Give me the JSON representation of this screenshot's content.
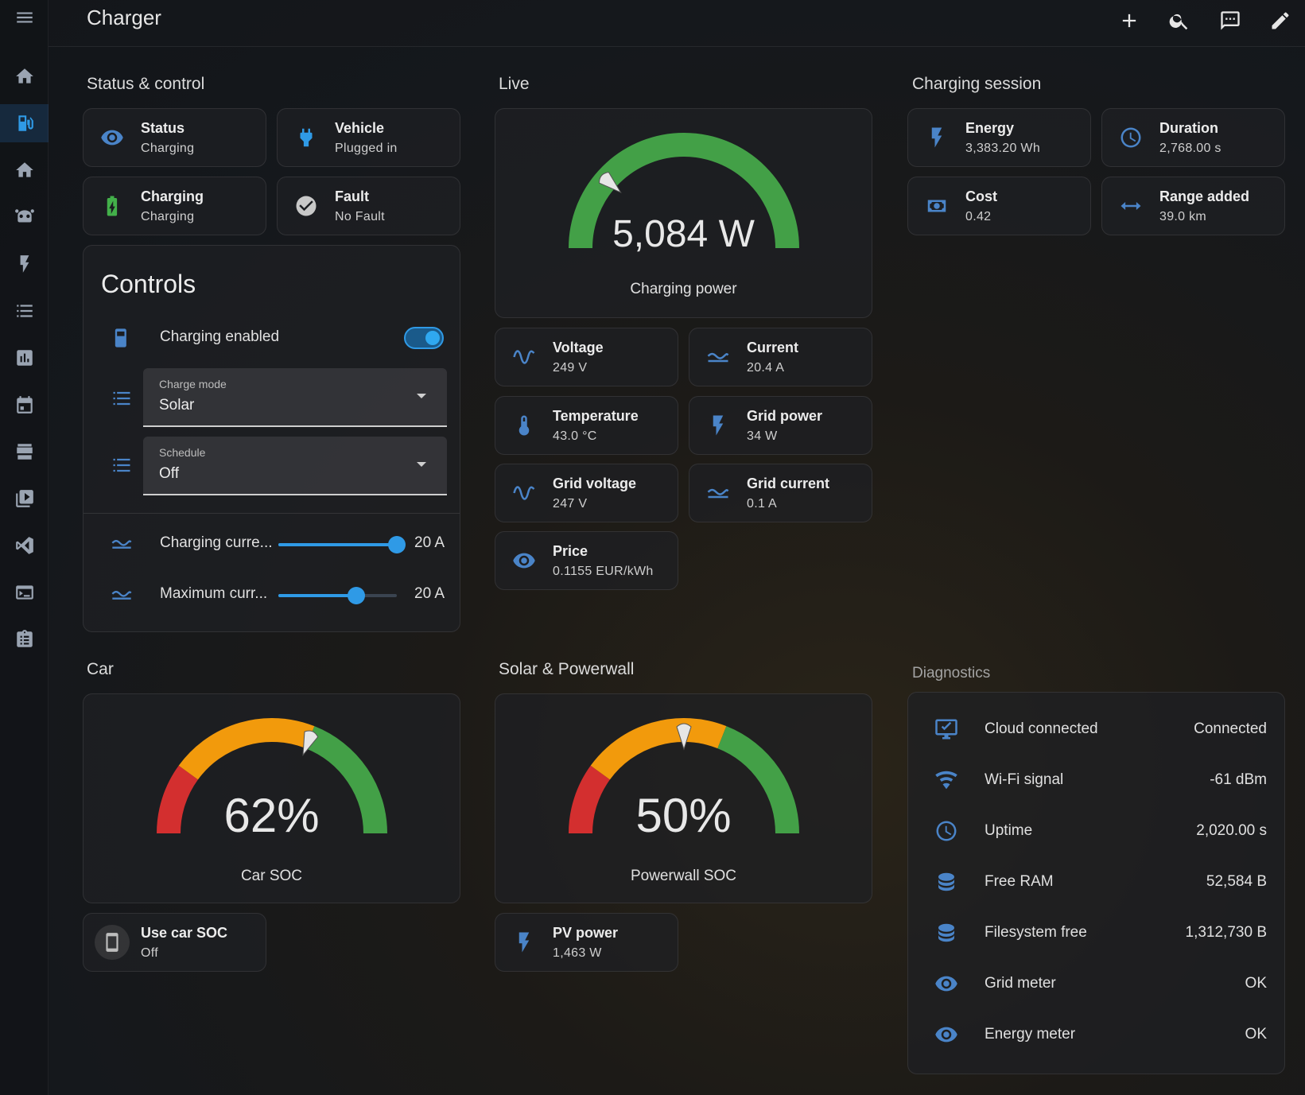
{
  "header": {
    "title": "Charger"
  },
  "sections": {
    "status_control": "Status & control",
    "live": "Live",
    "charging_session": "Charging session",
    "car": "Car",
    "solar_powerwall": "Solar & Powerwall",
    "diagnostics": "Diagnostics"
  },
  "status_tiles": [
    {
      "name": "Status",
      "state": "Charging",
      "icon": "eye-icon"
    },
    {
      "name": "Vehicle",
      "state": "Plugged in",
      "icon": "plug-icon"
    },
    {
      "name": "Charging",
      "state": "Charging",
      "icon": "battery-charging-icon"
    },
    {
      "name": "Fault",
      "state": "No Fault",
      "icon": "check-circle-icon"
    }
  ],
  "controls": {
    "title": "Controls",
    "charging_enabled": {
      "label": "Charging enabled",
      "on": true
    },
    "charge_mode": {
      "label": "Charge mode",
      "value": "Solar"
    },
    "schedule": {
      "label": "Schedule",
      "value": "Off"
    },
    "charging_current": {
      "label": "Charging curre...",
      "value": "20 A",
      "fraction": 1.0
    },
    "maximum_current": {
      "label": "Maximum curr...",
      "value": "20 A",
      "fraction": 0.66
    }
  },
  "live": {
    "power_gauge": {
      "value": "5,084 W",
      "name": "Charging power",
      "fraction": 0.23,
      "color": "#43a047"
    },
    "tiles": [
      {
        "name": "Voltage",
        "state": "249 V",
        "icon": "sine-wave-icon"
      },
      {
        "name": "Current",
        "state": "20.4 A",
        "icon": "current-ac-icon"
      },
      {
        "name": "Temperature",
        "state": "43.0 °C",
        "icon": "thermometer-icon"
      },
      {
        "name": "Grid power",
        "state": "34 W",
        "icon": "flash-icon"
      },
      {
        "name": "Grid voltage",
        "state": "247 V",
        "icon": "sine-wave-icon"
      },
      {
        "name": "Grid current",
        "state": "0.1 A",
        "icon": "current-ac-icon"
      },
      {
        "name": "Price",
        "state": "0.1155 EUR/kWh",
        "icon": "eye-icon"
      }
    ]
  },
  "session_tiles": [
    {
      "name": "Energy",
      "state": "3,383.20 Wh",
      "icon": "flash-icon"
    },
    {
      "name": "Duration",
      "state": "2,768.00 s",
      "icon": "clock-icon"
    },
    {
      "name": "Cost",
      "state": "0.42",
      "icon": "cash-icon"
    },
    {
      "name": "Range added",
      "state": "39.0 km",
      "icon": "arrow-left-right-icon"
    }
  ],
  "car": {
    "gauge": {
      "value": "62%",
      "name": "Car SOC",
      "fraction": 0.62
    },
    "use_car_soc": {
      "name": "Use car SOC",
      "state": "Off",
      "icon": "cellphone-icon"
    }
  },
  "solar": {
    "gauge": {
      "value": "50%",
      "name": "Powerwall SOC",
      "fraction": 0.5
    },
    "pv_power": {
      "name": "PV power",
      "state": "1,463 W",
      "icon": "flash-icon"
    }
  },
  "gauge_colors": {
    "red": "#d32f2f",
    "orange": "#f29a0c",
    "green": "#43a047",
    "track": "#3a3a3a",
    "needle": "#e6e6e6"
  },
  "diagnostics": [
    {
      "name": "Cloud connected",
      "value": "Connected",
      "icon": "monitor-icon"
    },
    {
      "name": "Wi-Fi signal",
      "value": "-61 dBm",
      "icon": "wifi-icon"
    },
    {
      "name": "Uptime",
      "value": "2,020.00 s",
      "icon": "clock-icon"
    },
    {
      "name": "Free RAM",
      "value": "52,584 B",
      "icon": "database-icon"
    },
    {
      "name": "Filesystem free",
      "value": "1,312,730 B",
      "icon": "database-icon"
    },
    {
      "name": "Grid meter",
      "value": "OK",
      "icon": "eye-icon"
    },
    {
      "name": "Energy meter",
      "value": "OK",
      "icon": "eye-icon"
    }
  ],
  "accent": "#2f9ae6"
}
